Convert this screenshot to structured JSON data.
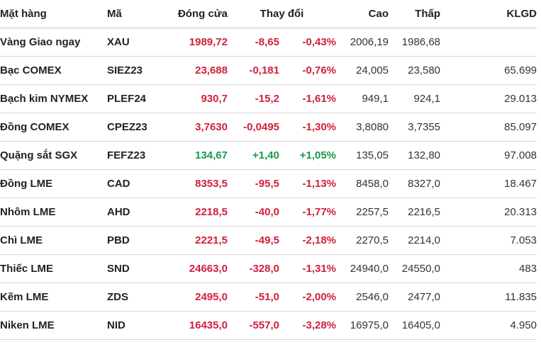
{
  "headers": {
    "name": "Mặt hàng",
    "code": "Mã",
    "close": "Đóng cửa",
    "change": "Thay đổi",
    "high": "Cao",
    "low": "Thấp",
    "volume": "KLGD"
  },
  "colors": {
    "down": "#d0213b",
    "up": "#1a9a49"
  },
  "rows": [
    {
      "name": "Vàng Giao ngay",
      "code": "XAU",
      "close": "1989,72",
      "change": "-8,65",
      "pct": "-0,43%",
      "high": "2006,19",
      "low": "1986,68",
      "volume": "",
      "dir": "down"
    },
    {
      "name": "Bạc COMEX",
      "code": "SIEZ23",
      "close": "23,688",
      "change": "-0,181",
      "pct": "-0,76%",
      "high": "24,005",
      "low": "23,580",
      "volume": "65.699",
      "dir": "down"
    },
    {
      "name": "Bạch kim NYMEX",
      "code": "PLEF24",
      "close": "930,7",
      "change": "-15,2",
      "pct": "-1,61%",
      "high": "949,1",
      "low": "924,1",
      "volume": "29.013",
      "dir": "down"
    },
    {
      "name": "Đồng COMEX",
      "code": "CPEZ23",
      "close": "3,7630",
      "change": "-0,0495",
      "pct": "-1,30%",
      "high": "3,8080",
      "low": "3,7355",
      "volume": "85.097",
      "dir": "down"
    },
    {
      "name": "Quặng sắt SGX",
      "code": "FEFZ23",
      "close": "134,67",
      "change": "+1,40",
      "pct": "+1,05%",
      "high": "135,05",
      "low": "132,80",
      "volume": "97.008",
      "dir": "up"
    },
    {
      "name": "Đồng LME",
      "code": "CAD",
      "close": "8353,5",
      "change": "-95,5",
      "pct": "-1,13%",
      "high": "8458,0",
      "low": "8327,0",
      "volume": "18.467",
      "dir": "down"
    },
    {
      "name": "Nhôm LME",
      "code": "AHD",
      "close": "2218,5",
      "change": "-40,0",
      "pct": "-1,77%",
      "high": "2257,5",
      "low": "2216,5",
      "volume": "20.313",
      "dir": "down"
    },
    {
      "name": "Chì LME",
      "code": "PBD",
      "close": "2221,5",
      "change": "-49,5",
      "pct": "-2,18%",
      "high": "2270,5",
      "low": "2214,0",
      "volume": "7.053",
      "dir": "down"
    },
    {
      "name": "Thiếc LME",
      "code": "SND",
      "close": "24663,0",
      "change": "-328,0",
      "pct": "-1,31%",
      "high": "24940,0",
      "low": "24550,0",
      "volume": "483",
      "dir": "down"
    },
    {
      "name": "Kẽm LME",
      "code": "ZDS",
      "close": "2495,0",
      "change": "-51,0",
      "pct": "-2,00%",
      "high": "2546,0",
      "low": "2477,0",
      "volume": "11.835",
      "dir": "down"
    },
    {
      "name": "Niken LME",
      "code": "NID",
      "close": "16435,0",
      "change": "-557,0",
      "pct": "-3,28%",
      "high": "16975,0",
      "low": "16405,0",
      "volume": "4.950",
      "dir": "down"
    }
  ]
}
